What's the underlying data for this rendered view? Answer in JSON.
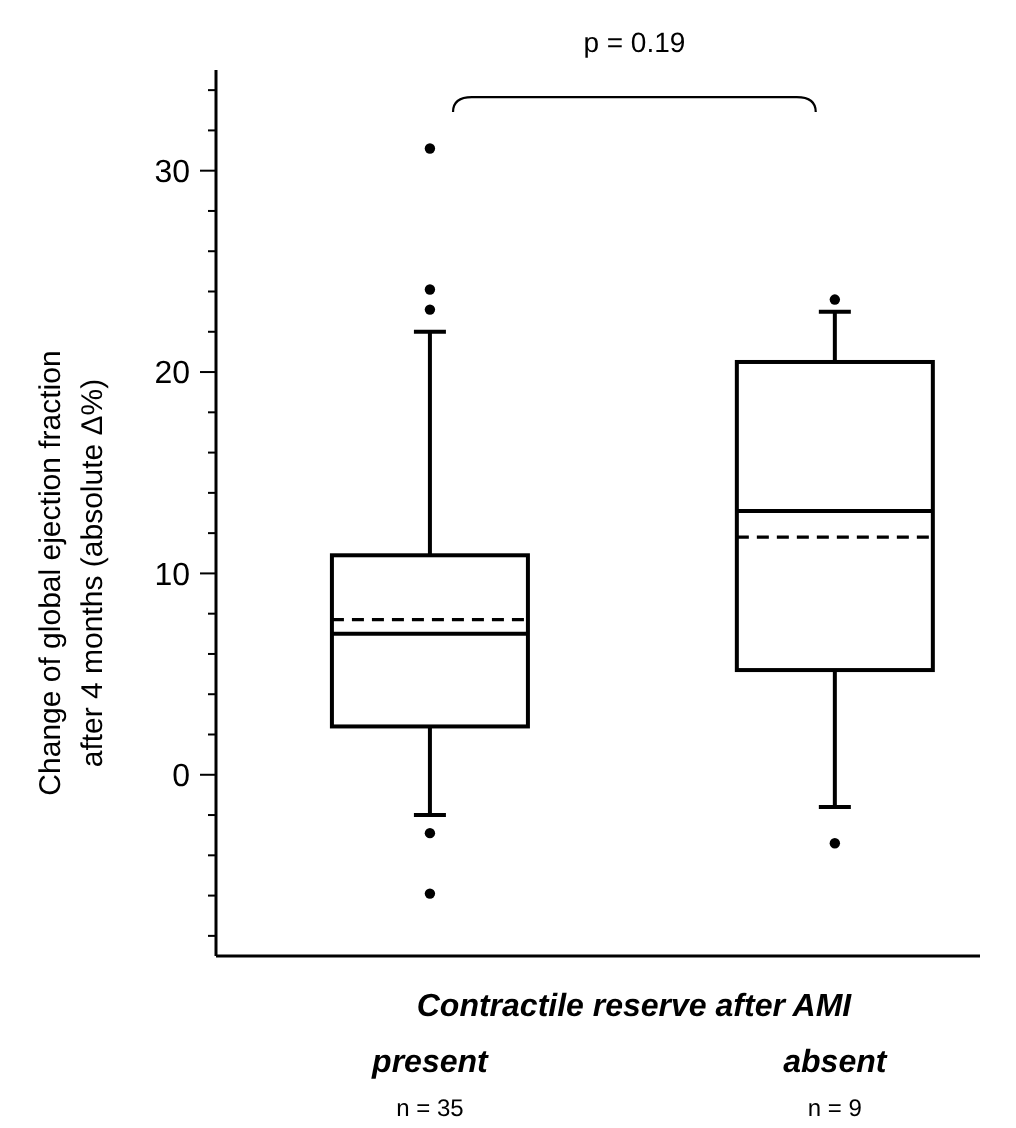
{
  "chart_data": {
    "type": "box",
    "xlabel": "Contractile reserve after AMI",
    "ylabel": "Change of global ejection fraction after 4 months (absolute Δ%)",
    "categories": [
      "present",
      "absent"
    ],
    "boxes": [
      {
        "low": -2.0,
        "q1": 2.4,
        "median": 7.0,
        "q3": 10.9,
        "high": 22.0,
        "mean": 7.7,
        "outliers": [
          31.1,
          24.1,
          23.1,
          -2.9,
          -5.9
        ]
      },
      {
        "low": -1.6,
        "q1": 5.2,
        "median": 13.1,
        "q3": 20.5,
        "high": 23.0,
        "mean": 11.8,
        "outliers": [
          23.6,
          -3.4
        ]
      }
    ],
    "color": "#000000",
    "ylim": [
      -9,
      35
    ],
    "yticks": [
      {
        "value": -8,
        "label": null
      },
      {
        "value": -6,
        "label": null
      },
      {
        "value": -4,
        "label": null
      },
      {
        "value": -2,
        "label": null
      },
      0,
      {
        "value": 2,
        "label": null
      },
      {
        "value": 4,
        "label": null
      },
      {
        "value": 6,
        "label": null
      },
      {
        "value": 8,
        "label": null
      },
      10,
      {
        "value": 12,
        "label": null
      },
      {
        "value": 14,
        "label": null
      },
      {
        "value": 16,
        "label": null
      },
      {
        "value": 18,
        "label": null
      },
      20,
      {
        "value": 22,
        "label": null
      },
      {
        "value": 24,
        "label": null
      },
      {
        "value": 26,
        "label": null
      },
      {
        "value": 28,
        "label": null
      },
      30,
      {
        "value": 32,
        "label": null
      },
      {
        "value": 34,
        "label": null
      }
    ],
    "annotations": [
      "p = 0.19",
      "n = 35",
      "n = 9"
    ],
    "grid": false
  }
}
